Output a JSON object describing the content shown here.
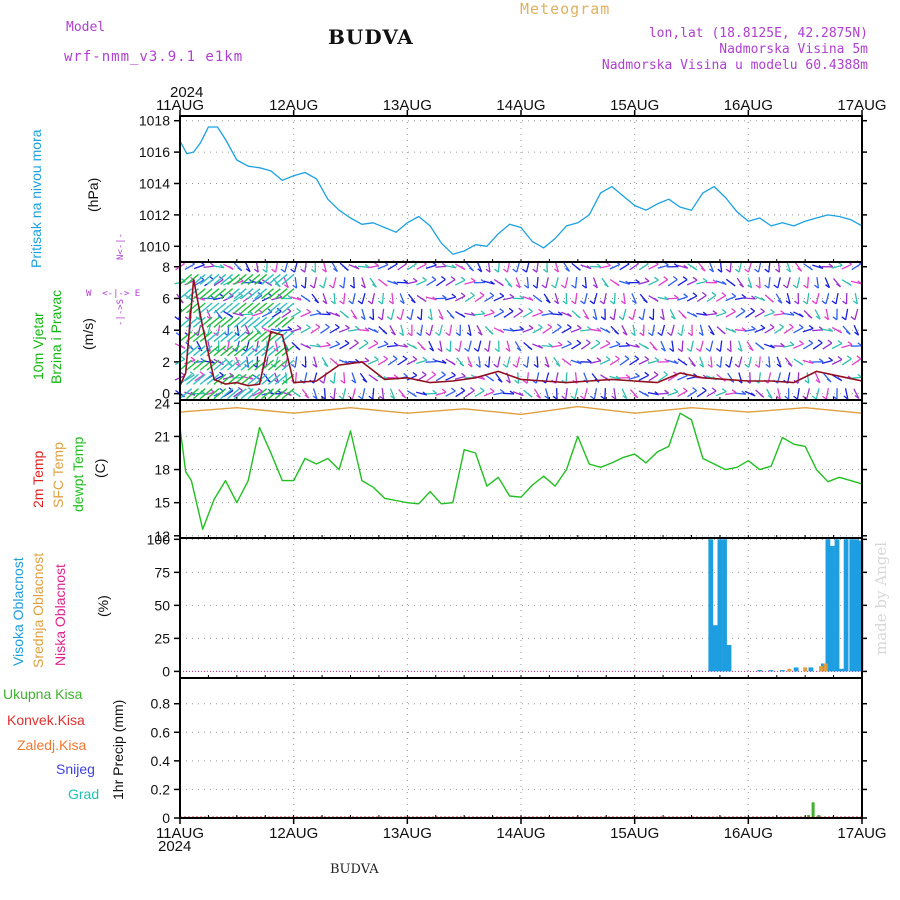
{
  "header": {
    "model_label": "Model",
    "model_name": "wrf-nmm_v3.9.1 e1km",
    "station": "BUDVA",
    "meteogram": "Meteogram",
    "coords": "lon,lat (18.8125E, 42.2875N)",
    "elevation": "Nadmorska Visina 5m",
    "model_elevation": "Nadmorska Visina u modelu 60.4388m",
    "year": "2024",
    "footer_station": "BUDVA",
    "credit": "made by Angel"
  },
  "colors": {
    "pressure": "#1ba1e2",
    "wind_label": "#14b814",
    "dir_legend": "#b040d0",
    "temp2m": "#e02020",
    "sfc": "#e0a040",
    "dewpt": "#20c020",
    "cloud_high": "#1c9ee0",
    "cloud_mid": "#e0a040",
    "cloud_low": "#e0208f",
    "precip_total": "#40b030",
    "precip_conv": "#e03030",
    "precip_frozen": "#f07830",
    "precip_snow": "#4040e0",
    "precip_graupel": "#20c0b0"
  },
  "chart_data": [
    {
      "type": "line",
      "panel": "pressure",
      "ylabel": [
        "Pritisak na nivou mora",
        "(hPa)"
      ],
      "ylim": [
        1009,
        1018.3
      ],
      "yticks": [
        1010,
        1012,
        1014,
        1016,
        1018
      ],
      "x_days": [
        0,
        0.06,
        0.12,
        0.18,
        0.25,
        0.33,
        0.4,
        0.5,
        0.6,
        0.7,
        0.8,
        0.9,
        1.0,
        1.1,
        1.2,
        1.3,
        1.4,
        1.5,
        1.6,
        1.7,
        1.8,
        1.9,
        2.0,
        2.1,
        2.2,
        2.3,
        2.4,
        2.5,
        2.6,
        2.7,
        2.8,
        2.9,
        3.0,
        3.1,
        3.2,
        3.3,
        3.4,
        3.5,
        3.6,
        3.7,
        3.8,
        3.9,
        4.0,
        4.1,
        4.2,
        4.3,
        4.4,
        4.5,
        4.6,
        4.7,
        4.8,
        4.9,
        5.0,
        5.1,
        5.2,
        5.3,
        5.4,
        5.5,
        5.6,
        5.7,
        5.8,
        5.9,
        6.0
      ],
      "values": [
        1016.7,
        1015.9,
        1016.0,
        1016.6,
        1017.6,
        1017.6,
        1016.8,
        1015.5,
        1015.1,
        1015.0,
        1014.8,
        1014.2,
        1014.5,
        1014.7,
        1014.3,
        1013.0,
        1012.3,
        1011.8,
        1011.4,
        1011.5,
        1011.2,
        1010.9,
        1011.5,
        1011.9,
        1011.3,
        1010.2,
        1009.5,
        1009.7,
        1010.1,
        1010.0,
        1010.8,
        1011.4,
        1011.2,
        1010.3,
        1009.9,
        1010.5,
        1011.3,
        1011.5,
        1012.0,
        1013.4,
        1013.8,
        1013.2,
        1012.6,
        1012.3,
        1012.7,
        1013.0,
        1012.5,
        1012.3,
        1013.4,
        1013.8,
        1013.1,
        1012.2,
        1011.6,
        1011.8,
        1011.3,
        1011.5,
        1011.3,
        1011.6,
        1011.8,
        1012.0,
        1011.9,
        1011.7,
        1011.3
      ]
    },
    {
      "type": "barbs",
      "panel": "wind",
      "ylabel": [
        "10m Vjetar",
        "Brzina i Pravac",
        "(m/s)"
      ],
      "direction_legend": {
        "n": "N",
        "e": "E",
        "s": "S",
        "w": "W"
      },
      "ylim": [
        -0.4,
        8.3
      ],
      "yticks": [
        0,
        2,
        4,
        6,
        8
      ],
      "speed_x_days": [
        0,
        0.05,
        0.12,
        0.2,
        0.3,
        0.4,
        0.5,
        0.6,
        0.7,
        0.8,
        0.9,
        1.0,
        1.2,
        1.4,
        1.6,
        1.8,
        2.0,
        2.2,
        2.4,
        2.6,
        2.8,
        3.0,
        3.2,
        3.4,
        3.6,
        3.8,
        4.0,
        4.2,
        4.4,
        4.6,
        4.8,
        5.0,
        5.2,
        5.4,
        5.6,
        5.8,
        6.0
      ],
      "speed_values": [
        0.5,
        1.3,
        7.2,
        4.2,
        0.9,
        0.6,
        0.7,
        0.5,
        0.6,
        3.9,
        3.7,
        0.7,
        0.8,
        1.8,
        2.0,
        0.9,
        1.0,
        0.7,
        0.8,
        1.0,
        1.4,
        0.9,
        0.8,
        0.7,
        0.8,
        0.9,
        0.8,
        0.7,
        1.3,
        1.0,
        0.9,
        0.8,
        0.8,
        0.7,
        1.4,
        1.1,
        0.8
      ],
      "barb_rows": [
        0,
        1,
        2,
        3,
        4,
        5,
        6,
        7,
        8
      ]
    },
    {
      "type": "line",
      "panel": "temperature",
      "ylabel": [
        "2m Temp",
        "SFC Temp",
        "dewpt Temp",
        "(C)"
      ],
      "ylim": [
        11.8,
        24.3
      ],
      "yticks": [
        12,
        15,
        18,
        21,
        24
      ],
      "series": [
        {
          "name": "SFC Temp",
          "x_days": [
            0,
            0.5,
            1,
            1.5,
            2,
            2.5,
            3,
            3.5,
            4,
            4.5,
            5,
            5.5,
            6
          ],
          "values": [
            23.2,
            23.6,
            23.1,
            23.6,
            23.1,
            23.5,
            23.0,
            23.7,
            23.1,
            23.6,
            23.2,
            23.6,
            23.1
          ]
        },
        {
          "name": "dewpt Temp",
          "x_days": [
            0,
            0.05,
            0.1,
            0.2,
            0.3,
            0.4,
            0.5,
            0.6,
            0.7,
            0.8,
            0.9,
            1.0,
            1.1,
            1.2,
            1.3,
            1.4,
            1.5,
            1.6,
            1.7,
            1.8,
            1.9,
            2.0,
            2.1,
            2.2,
            2.3,
            2.4,
            2.5,
            2.6,
            2.7,
            2.8,
            2.9,
            3.0,
            3.1,
            3.2,
            3.3,
            3.4,
            3.5,
            3.6,
            3.7,
            3.8,
            3.9,
            4.0,
            4.1,
            4.2,
            4.3,
            4.4,
            4.5,
            4.6,
            4.7,
            4.8,
            4.9,
            5.0,
            5.1,
            5.2,
            5.3,
            5.4,
            5.5,
            5.6,
            5.7,
            5.8,
            5.9,
            6.0
          ],
          "values": [
            21.8,
            17.8,
            17.0,
            12.6,
            15.3,
            17.0,
            15.0,
            17.0,
            21.8,
            19.5,
            17.0,
            17.0,
            19.0,
            18.5,
            19.0,
            18.0,
            21.5,
            17.0,
            16.4,
            15.4,
            15.2,
            15.0,
            14.9,
            16.0,
            14.9,
            15.0,
            19.8,
            19.5,
            16.5,
            17.3,
            15.6,
            15.5,
            16.6,
            17.4,
            16.5,
            18.0,
            21.0,
            18.5,
            18.2,
            18.6,
            19.1,
            19.4,
            18.6,
            19.6,
            20.1,
            23.1,
            22.5,
            19.0,
            18.5,
            18.0,
            18.2,
            18.8,
            18.0,
            18.3,
            20.9,
            20.3,
            20.1,
            18.0,
            16.9,
            17.3,
            17.0,
            16.7
          ]
        }
      ]
    },
    {
      "type": "bar",
      "panel": "cloud",
      "ylabel": [
        "Visoka Oblacnost",
        "Srednja Oblacnost",
        "Niska Oblacnost",
        "(%)"
      ],
      "ylim": [
        -5,
        101
      ],
      "yticks": [
        0,
        25,
        50,
        75,
        100
      ],
      "series": [
        {
          "name": "Visoka Oblacnost",
          "x_days": [
            4.67,
            4.71,
            4.75,
            4.79,
            4.83,
            5.1,
            5.2,
            5.3,
            5.42,
            5.55,
            5.66,
            5.7,
            5.74,
            5.78,
            5.82,
            5.86,
            5.91,
            5.95,
            5.99
          ],
          "values": [
            100,
            35,
            100,
            100,
            20,
            1,
            1,
            1,
            3,
            3,
            6,
            100,
            95,
            100,
            2,
            100,
            100,
            100,
            99
          ]
        },
        {
          "name": "Srednja Oblacnost",
          "x_days": [
            5.36,
            5.5,
            5.64,
            5.68
          ],
          "values": [
            2,
            3,
            4,
            6
          ]
        }
      ]
    },
    {
      "type": "bar",
      "panel": "precip",
      "ylabel": [
        "1hr Precip (mm)"
      ],
      "legend": [
        "Ukupna Kisa",
        "Konvek.Kisa",
        "Zaledj.Kisa",
        "Snijeg",
        "Grad"
      ],
      "ylim": [
        0,
        0.98
      ],
      "yticks": [
        0,
        0.2,
        0.4,
        0.6,
        0.8
      ],
      "series": [
        {
          "name": "Ukupna Kisa",
          "x_days": [
            5.53,
            5.57,
            5.62
          ],
          "values": [
            0.02,
            0.11,
            0.02
          ]
        }
      ]
    }
  ],
  "x_axis": {
    "tick_labels": [
      "11AUG",
      "12AUG",
      "13AUG",
      "14AUG",
      "15AUG",
      "16AUG",
      "17AUG"
    ]
  }
}
